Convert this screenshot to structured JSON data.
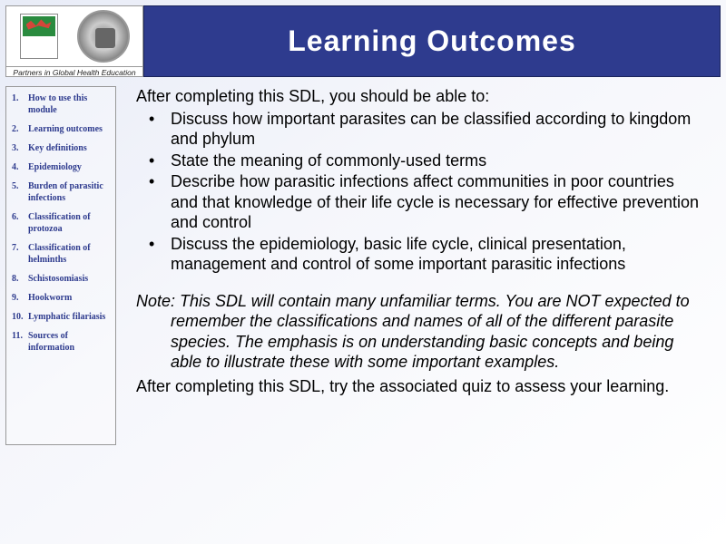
{
  "logo_caption": "Partners in Global Health Education",
  "title": "Learning Outcomes",
  "nav": [
    "How to use this module",
    "Learning outcomes",
    "Key definitions",
    "Epidemiology",
    "Burden of parasitic infections",
    "Classification of protozoa",
    "Classification of helminths",
    "Schistosomiasis",
    "Hookworm",
    "Lymphatic filariasis",
    "Sources of information"
  ],
  "intro": "After completing this SDL, you should be able to:",
  "bullets": [
    "Discuss how important parasites can be classified according to kingdom and phylum",
    "State the meaning of commonly-used terms",
    "Describe how parasitic infections affect communities in poor countries and that knowledge of their life cycle is necessary for effective prevention and control",
    "Discuss the epidemiology, basic life cycle, clinical presentation, management and control of some important parasitic infections"
  ],
  "note": "Note: This SDL will contain many unfamiliar terms. You are NOT expected to remember the classifications and names of all of the different parasite species. The emphasis is on understanding basic concepts and being able to illustrate these with some important examples.",
  "closing": "After completing this SDL, try the associated quiz to assess your learning.",
  "colors": {
    "title_bg": "#2e3b8e",
    "title_text": "#ffffff",
    "nav_text": "#2e3b8e",
    "body_text": "#000000",
    "border": "#999999"
  }
}
